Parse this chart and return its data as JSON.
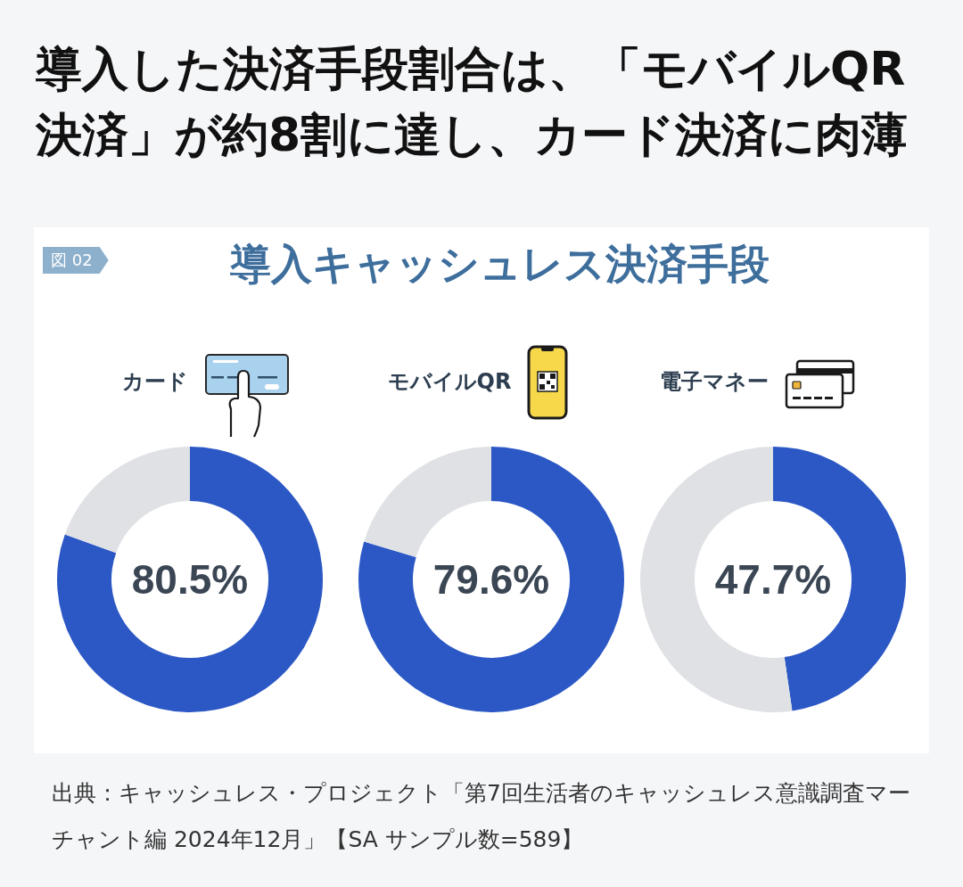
{
  "chart_data": [
    {
      "type": "other",
      "title": "導入した決済手段割合は、「モバイルQR決済」が約8割に達し、カード決済に肉薄",
      "subtitle": "導入キャッシュレス決済手段",
      "annotations": [
        "図 02",
        "出典：キャッシュレス・プロジェクト「第7回生活者のキャッシュレス意識調査マーチャント編 2024年12月」【SA サンプル数=589】"
      ]
    },
    {
      "type": "donut",
      "title": "カード",
      "categories": [
        null,
        null
      ],
      "values": [
        80.5,
        19.5
      ],
      "colors": [
        "#2c58c5",
        "#dfe1e5"
      ],
      "annotations": [
        "80.5%"
      ]
    },
    {
      "type": "donut",
      "title": "モバイルQR",
      "categories": [
        null,
        null
      ],
      "values": [
        79.6,
        20.4
      ],
      "colors": [
        "#2c58c5",
        "#dfe1e5"
      ],
      "annotations": [
        "79.6%"
      ]
    },
    {
      "type": "donut",
      "title": "電子マネー",
      "categories": [
        null,
        null
      ],
      "values": [
        47.7,
        52.3
      ],
      "colors": [
        "#2c58c5",
        "#dfe1e5"
      ],
      "annotations": [
        "47.7%"
      ]
    }
  ]
}
